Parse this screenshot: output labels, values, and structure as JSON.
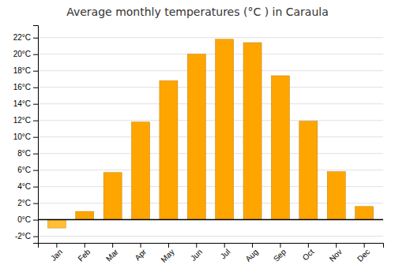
{
  "chart_data": {
    "type": "bar",
    "title": "Average monthly temperatures (°C ) in Caraula",
    "categories": [
      "Jan",
      "Feb",
      "Mar",
      "Apr",
      "May",
      "Jun",
      "Jul",
      "Aug",
      "Sep",
      "Oct",
      "Nov",
      "Dec"
    ],
    "values": [
      -1.0,
      1.0,
      5.7,
      11.8,
      16.8,
      20.0,
      21.8,
      21.4,
      17.4,
      11.9,
      5.8,
      1.6
    ],
    "colors": [
      "#FFBE33",
      "#FFA500",
      "#FFA500",
      "#FFA500",
      "#FFA500",
      "#FFA500",
      "#FFA500",
      "#FFA500",
      "#FFA500",
      "#FFA500",
      "#FFA500",
      "#FFA500"
    ],
    "ylim": [
      -2.8,
      23.5
    ],
    "yticks": [
      {
        "value": -2,
        "label": "-2°C"
      },
      {
        "value": 0,
        "label": "0°C"
      },
      {
        "value": 2,
        "label": "2°C"
      },
      {
        "value": 4,
        "label": "4°C"
      },
      {
        "value": 6,
        "label": "6°C"
      },
      {
        "value": 8,
        "label": "8°C"
      },
      {
        "value": 10,
        "label": "10°C"
      },
      {
        "value": 12,
        "label": "12°C"
      },
      {
        "value": 14,
        "label": "14°C"
      },
      {
        "value": 16,
        "label": "16°C"
      },
      {
        "value": 18,
        "label": "18°C"
      },
      {
        "value": 20,
        "label": "20°C"
      },
      {
        "value": 22,
        "label": "22°C"
      }
    ],
    "grid": true
  }
}
